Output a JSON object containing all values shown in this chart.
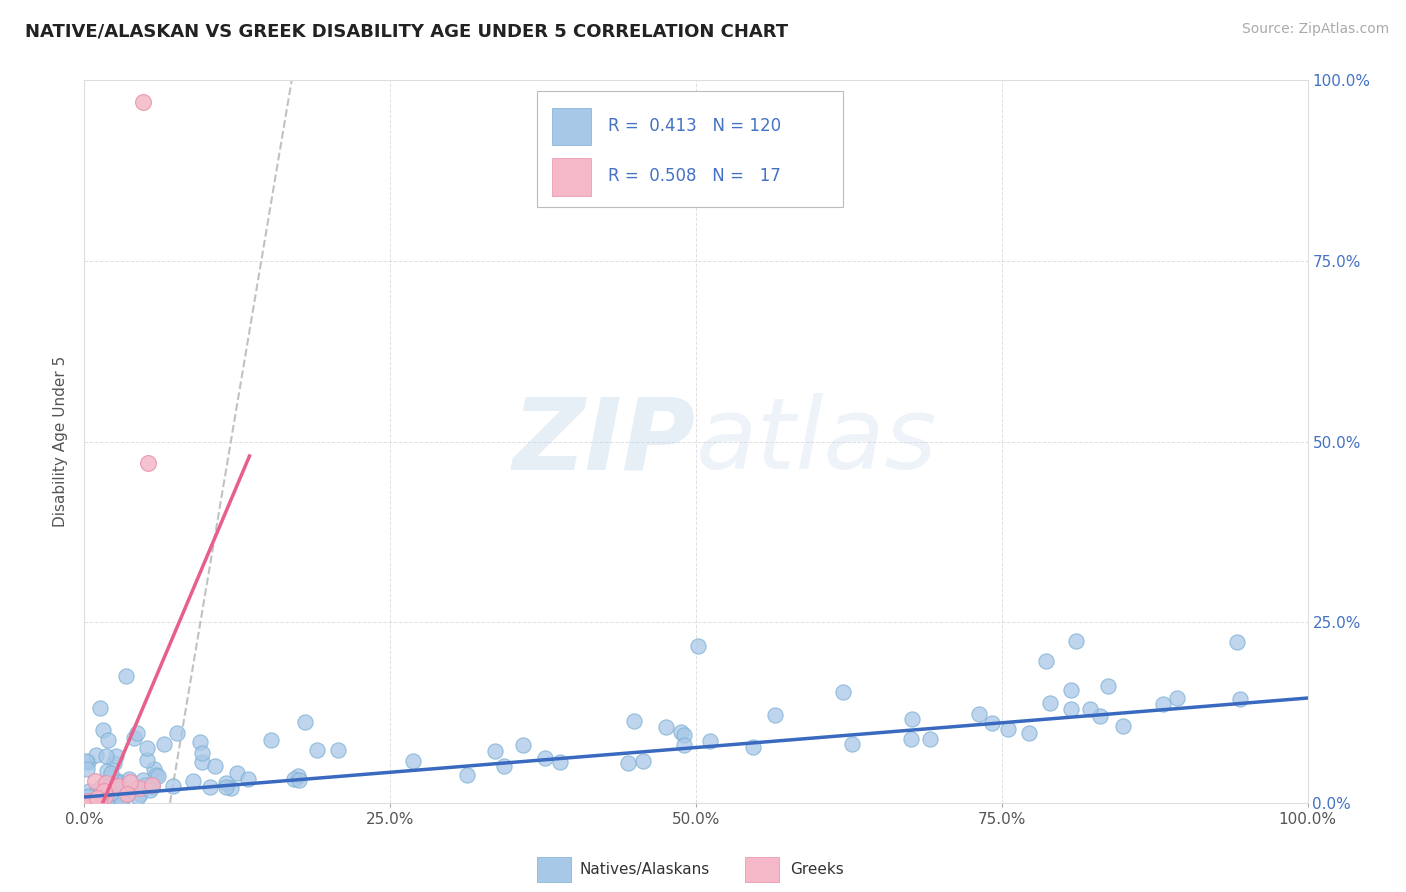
{
  "title": "NATIVE/ALASKAN VS GREEK DISABILITY AGE UNDER 5 CORRELATION CHART",
  "source": "Source: ZipAtlas.com",
  "ylabel": "Disability Age Under 5",
  "blue_R": 0.413,
  "blue_N": 120,
  "pink_R": 0.508,
  "pink_N": 17,
  "blue_color": "#a8c8e8",
  "blue_edge_color": "#7aafd4",
  "blue_line_color": "#3a6abf",
  "pink_color": "#f4b8c8",
  "pink_edge_color": "#e890a8",
  "pink_line_color": "#e8608a",
  "pink_dash_color": "#cccccc",
  "bg_color": "#ffffff",
  "grid_color": "#cccccc",
  "watermark_color": "#d0dff0",
  "title_color": "#222222",
  "source_color": "#aaaaaa",
  "axis_label_color": "#4472c4",
  "ylabel_color": "#555555",
  "legend_label_blue": "Natives/Alaskans",
  "legend_label_pink": "Greeks"
}
